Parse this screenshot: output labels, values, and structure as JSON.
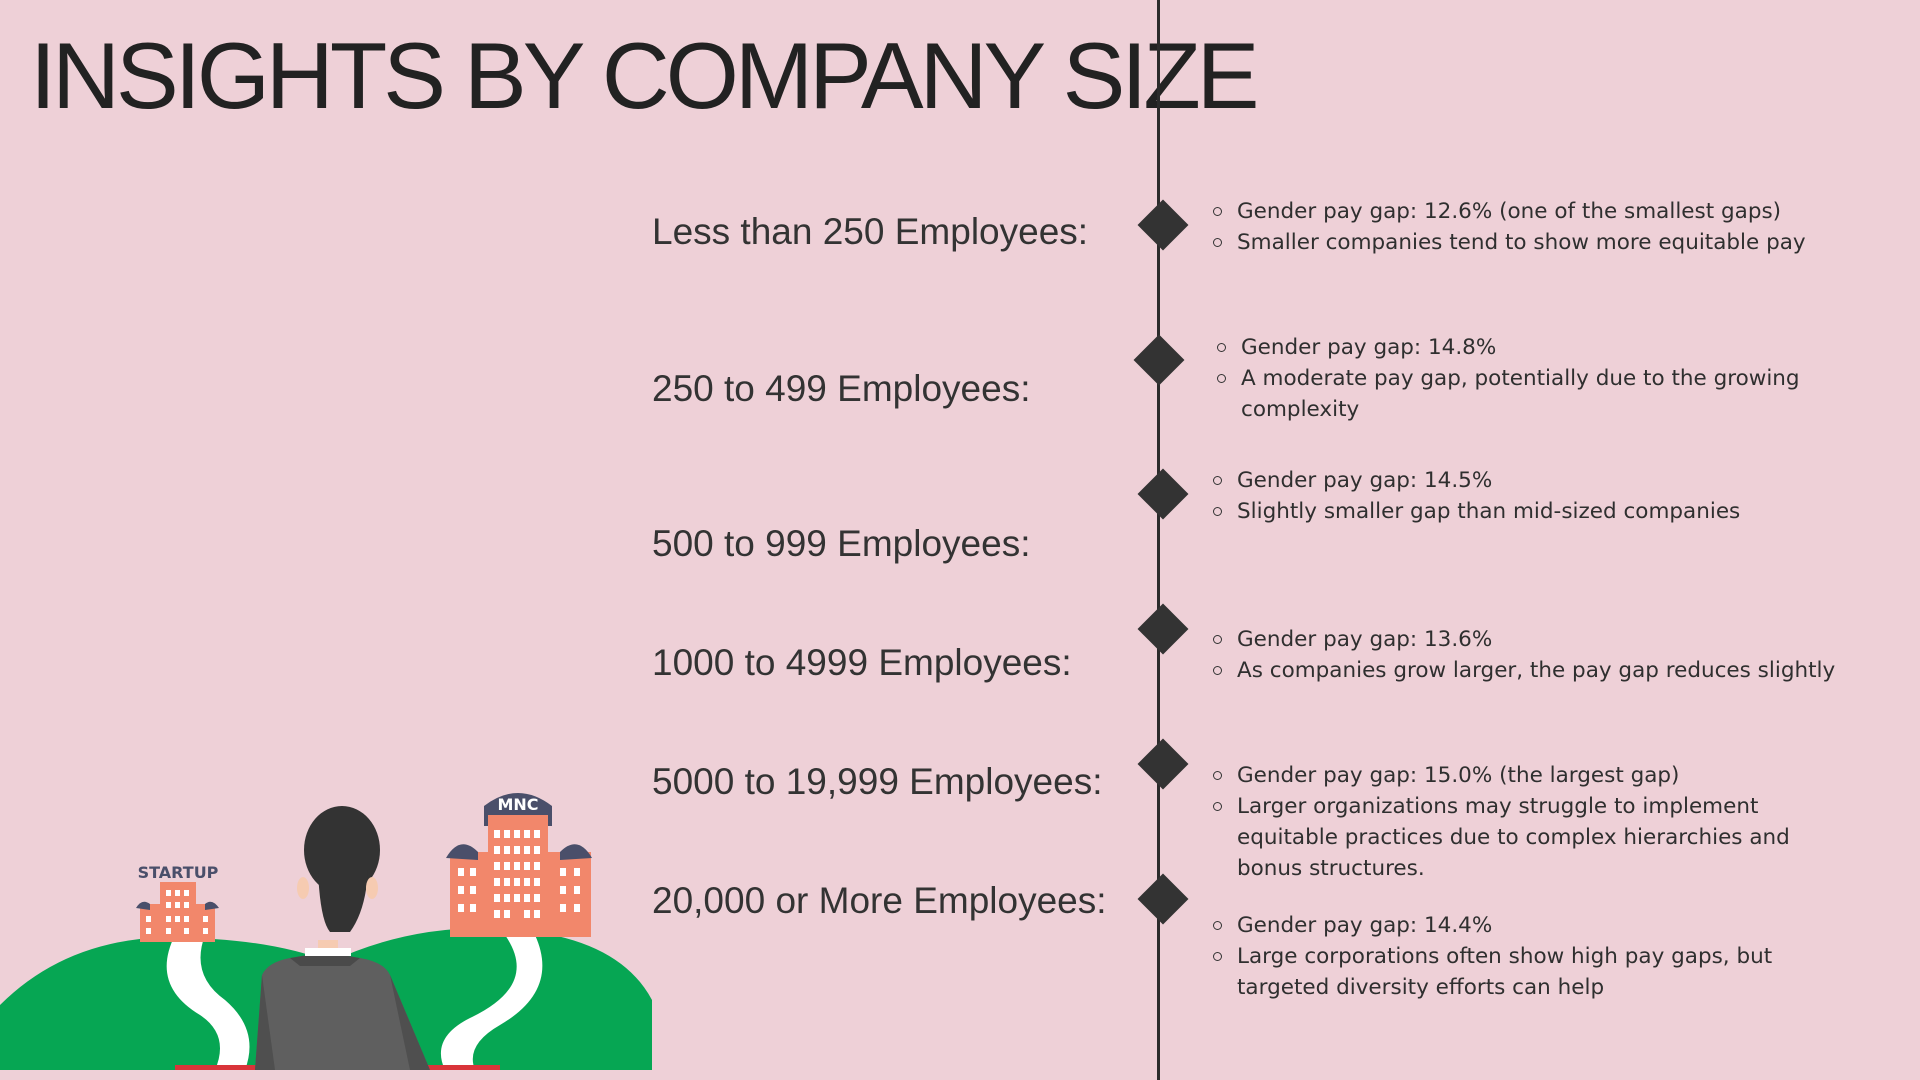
{
  "page": {
    "title": "INSIGHTS BY COMPANY SIZE"
  },
  "illustration": {
    "startup_sign": "STARTUP",
    "mnc_sign": "MNC"
  },
  "sizes": [
    {
      "label": "Less than 250 Employees:",
      "bullets": [
        "Gender pay gap: 12.6% (one of the smallest gaps)",
        "Smaller companies tend to show more equitable pay"
      ]
    },
    {
      "label": "250 to 499 Employees:",
      "bullets": [
        "Gender pay gap: 14.8%",
        "A moderate pay gap, potentially due to the growing complexity"
      ]
    },
    {
      "label": "500 to 999 Employees:",
      "bullets": [
        "Gender pay gap: 14.5%",
        "Slightly smaller gap than mid-sized companies"
      ]
    },
    {
      "label": "1000 to 4999 Employees:",
      "bullets": [
        "Gender pay gap: 13.6%",
        "As companies grow larger, the pay gap reduces slightly"
      ]
    },
    {
      "label": "5000 to 19,999 Employees:",
      "bullets": [
        "Gender pay gap: 15.0% (the largest gap)",
        "Larger organizations may struggle to implement equitable practices due to complex hierarchies and bonus structures."
      ]
    },
    {
      "label": "20,000 or More Employees:",
      "bullets": [
        "Gender pay gap: 14.4%",
        "Large corporations often show high pay gaps, but targeted diversity efforts can help"
      ]
    }
  ]
}
